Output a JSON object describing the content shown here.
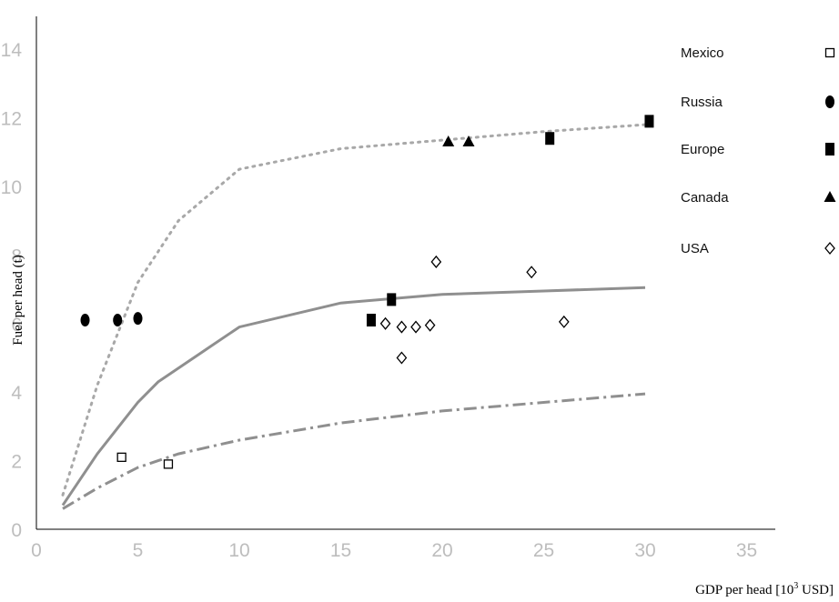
{
  "chart_data": {
    "type": "scatter",
    "xlabel": "GDP per head [10",
    "xlabel_sup": "3",
    "xlabel_tail": " USD]",
    "ylabel": "Fuel per head (t)",
    "xlim": [
      0,
      35
    ],
    "ylim": [
      0,
      15
    ],
    "x_ticks": [
      "0",
      "5",
      "10",
      "15",
      "20",
      "25",
      "30",
      "35"
    ],
    "y_ticks": [
      "0",
      "2",
      "4",
      "6",
      "8",
      "10",
      "12",
      "14"
    ],
    "grid": false,
    "legend_position": "right",
    "series": [
      {
        "name": "Mexico",
        "marker": "square-open",
        "color": "#000000",
        "points": [
          [
            4.2,
            2.1
          ],
          [
            6.5,
            1.9
          ]
        ]
      },
      {
        "name": "Russia",
        "marker": "hexagon-filled",
        "color": "#000000",
        "points": [
          [
            2.4,
            6.1
          ],
          [
            4.0,
            6.1
          ],
          [
            5.0,
            6.15
          ]
        ]
      },
      {
        "name": "Europe",
        "marker": "rect-filled",
        "color": "#000000",
        "points": [
          [
            16.5,
            6.1
          ],
          [
            17.5,
            6.7
          ],
          [
            25.3,
            11.4
          ],
          [
            30.2,
            11.9
          ]
        ]
      },
      {
        "name": "Canada",
        "marker": "triangle-filled",
        "color": "#000000",
        "points": [
          [
            20.3,
            11.3
          ],
          [
            21.3,
            11.3
          ]
        ]
      },
      {
        "name": "USA",
        "marker": "diamond-open",
        "color": "#000000",
        "points": [
          [
            17.2,
            6.0
          ],
          [
            18.0,
            5.9
          ],
          [
            18.0,
            5.0
          ],
          [
            18.7,
            5.9
          ],
          [
            19.4,
            5.95
          ],
          [
            19.7,
            7.8
          ],
          [
            24.4,
            7.5
          ],
          [
            26.0,
            6.05
          ]
        ]
      }
    ],
    "curves": [
      {
        "style": "dotted",
        "color": "#a8a8a8",
        "points": [
          [
            1.3,
            1.0
          ],
          [
            3.0,
            4.2
          ],
          [
            5.0,
            7.2
          ],
          [
            7.0,
            9.0
          ],
          [
            10.0,
            10.5
          ],
          [
            15.0,
            11.1
          ],
          [
            20.0,
            11.35
          ],
          [
            25.0,
            11.6
          ],
          [
            30.0,
            11.8
          ]
        ]
      },
      {
        "style": "solid",
        "color": "#8f8f8f",
        "points": [
          [
            1.3,
            0.7
          ],
          [
            3.0,
            2.2
          ],
          [
            5.0,
            3.7
          ],
          [
            6.0,
            4.3
          ],
          [
            8.0,
            5.1
          ],
          [
            10.0,
            5.9
          ],
          [
            15.0,
            6.6
          ],
          [
            20.0,
            6.85
          ],
          [
            25.0,
            6.95
          ],
          [
            30.0,
            7.05
          ]
        ]
      },
      {
        "style": "dashdot",
        "color": "#8f8f8f",
        "points": [
          [
            1.3,
            0.6
          ],
          [
            3.0,
            1.2
          ],
          [
            5.0,
            1.8
          ],
          [
            7.0,
            2.2
          ],
          [
            10.0,
            2.6
          ],
          [
            15.0,
            3.1
          ],
          [
            20.0,
            3.45
          ],
          [
            25.0,
            3.7
          ],
          [
            30.0,
            3.95
          ]
        ]
      }
    ]
  }
}
